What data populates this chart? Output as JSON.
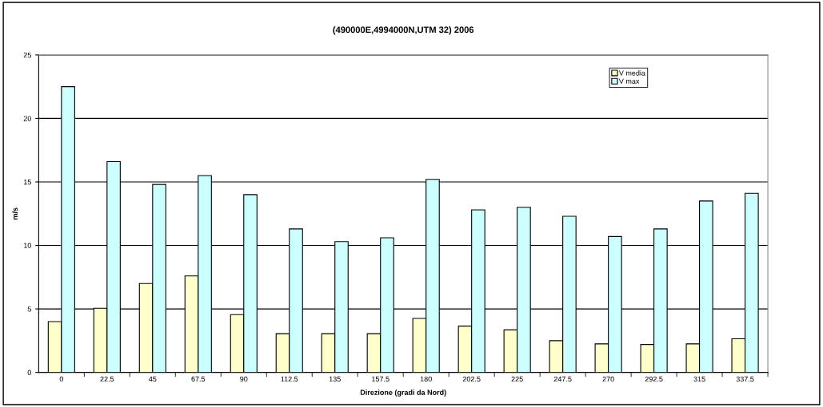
{
  "chart_data": {
    "type": "bar",
    "title": "(490000E,4994000N,UTM 32) 2006",
    "xlabel": "Direzione (gradi da Nord)",
    "ylabel": "m/s",
    "categories": [
      "0",
      "22.5",
      "45",
      "67.5",
      "90",
      "112.5",
      "135",
      "157.5",
      "180",
      "202.5",
      "225",
      "247.5",
      "270",
      "292.5",
      "315",
      "337.5"
    ],
    "series": [
      {
        "name": "V media",
        "color": "#ffffcc",
        "values": [
          4.0,
          5.05,
          7.0,
          7.6,
          4.55,
          3.05,
          3.05,
          3.05,
          4.25,
          3.65,
          3.35,
          2.5,
          2.25,
          2.2,
          2.25,
          2.65
        ]
      },
      {
        "name": "V max",
        "color": "#ccffff",
        "values": [
          22.5,
          16.6,
          14.8,
          15.5,
          14.0,
          11.3,
          10.3,
          10.6,
          15.2,
          12.8,
          13.0,
          12.3,
          10.7,
          11.3,
          13.5,
          14.1
        ]
      }
    ],
    "ylim": [
      0,
      25
    ],
    "yticks": [
      0,
      5,
      10,
      15,
      20,
      25
    ],
    "grid": "y",
    "legend": "top right"
  }
}
